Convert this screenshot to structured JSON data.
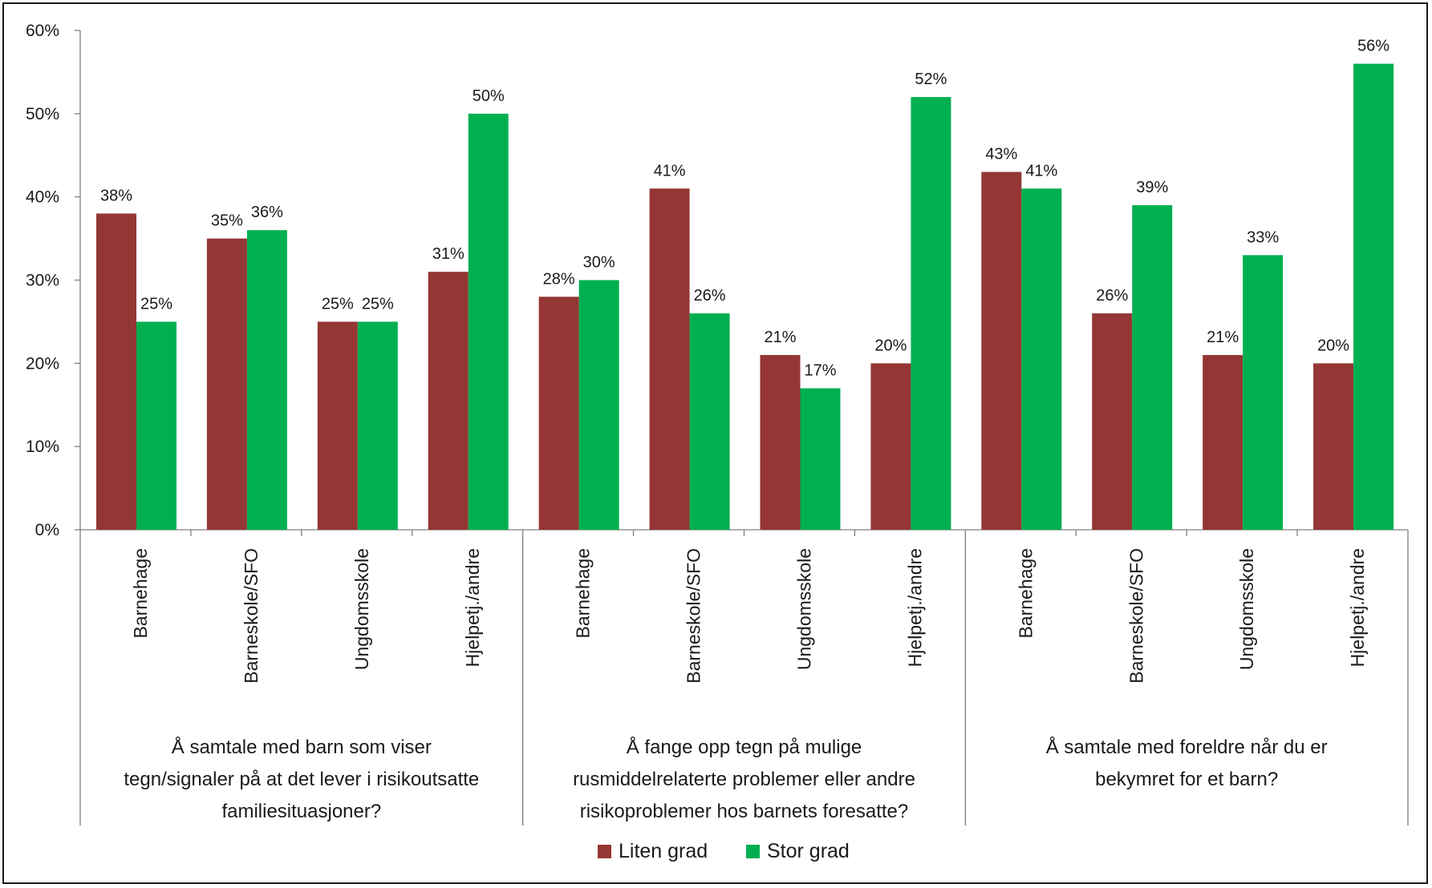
{
  "chart_data": {
    "type": "bar",
    "groups": [
      {
        "label_lines": [
          "Å samtale med barn som viser",
          "tegn/signaler på at det lever i risikoutsatte",
          "familiesituasjoner?"
        ],
        "categories": [
          "Barnehage",
          "Barneskole/SFO",
          "Ungdomsskole",
          "Hjelpetj./andre"
        ]
      },
      {
        "label_lines": [
          "Å fange opp tegn på mulige",
          "rusmiddelrelaterte problemer eller andre",
          "risikoproblemer hos barnets foresatte?"
        ],
        "categories": [
          "Barnehage",
          "Barneskole/SFO",
          "Ungdomsskole",
          "Hjelpetj./andre"
        ]
      },
      {
        "label_lines": [
          "Å samtale med foreldre når du er",
          "bekymret for et barn?"
        ],
        "categories": [
          "Barnehage",
          "Barneskole/SFO",
          "Ungdomsskole",
          "Hjelpetj./andre"
        ]
      }
    ],
    "series": [
      {
        "name": "Liten grad",
        "color": "#943634",
        "values": [
          38,
          35,
          25,
          31,
          28,
          41,
          21,
          20,
          43,
          26,
          21,
          20
        ],
        "labels": [
          "38%",
          "35%",
          "25%",
          "31%",
          "28%",
          "41%",
          "21%",
          "20%",
          "43%",
          "26%",
          "21%",
          "20%"
        ]
      },
      {
        "name": "Stor grad",
        "color": "#00b050",
        "values": [
          25,
          36,
          25,
          50,
          30,
          26,
          17,
          52,
          41,
          39,
          33,
          56
        ],
        "labels": [
          "25%",
          "36%",
          "25%",
          "50%",
          "30%",
          "26%",
          "17%",
          "52%",
          "41%",
          "39%",
          "33%",
          "56%"
        ]
      }
    ],
    "ylim": [
      0,
      60
    ],
    "yticks": [
      {
        "value": 0,
        "label": "0%"
      },
      {
        "value": 10,
        "label": "10%"
      },
      {
        "value": 20,
        "label": "20%"
      },
      {
        "value": 30,
        "label": "30%"
      },
      {
        "value": 40,
        "label": "40%"
      },
      {
        "value": 50,
        "label": "50%"
      },
      {
        "value": 60,
        "label": "60%"
      }
    ],
    "grid": false,
    "legend_position": "bottom"
  }
}
